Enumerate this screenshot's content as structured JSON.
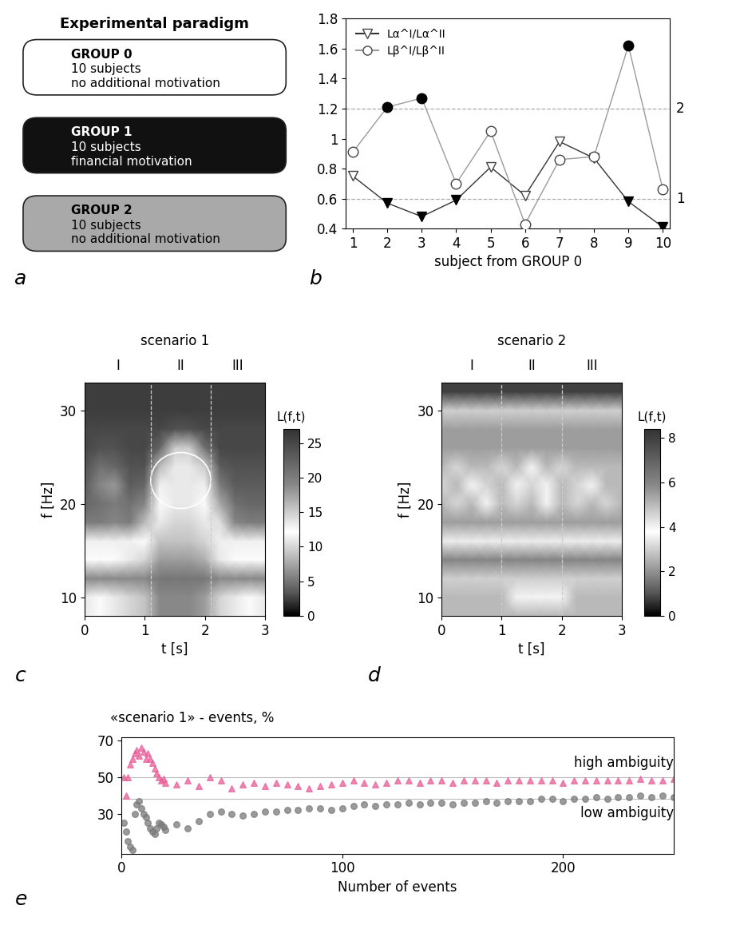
{
  "panel_a": {
    "panel": "a",
    "type": "diagram",
    "title": "Experimental paradigm",
    "groups": [
      {
        "name": "GROUP 0",
        "lines": [
          "10 subjects",
          "no additional motivation"
        ],
        "color": "#ffffff"
      },
      {
        "name": "GROUP 1",
        "lines": [
          "10 subjects",
          "financial motivation"
        ],
        "color": "#111111"
      },
      {
        "name": "GROUP 2",
        "lines": [
          "10 subjects",
          "no additional motivation"
        ],
        "color": "#a9a9a9"
      }
    ]
  },
  "chart_data": [
    {
      "panel": "b",
      "type": "line",
      "x_label": "subject from GROUP 0",
      "x": [
        1,
        2,
        3,
        4,
        5,
        6,
        7,
        8,
        9,
        10
      ],
      "xlim": [
        0.8,
        10.2
      ],
      "xticks": [
        1,
        2,
        3,
        4,
        5,
        6,
        7,
        8,
        9,
        10
      ],
      "ylim": [
        0.4,
        1.8
      ],
      "yticks": [
        0.4,
        0.6,
        0.8,
        1,
        1.2,
        1.4,
        1.6,
        1.8
      ],
      "legend": "upper left",
      "reference_lines": [
        {
          "value": 0.6,
          "label": "1"
        },
        {
          "value": 1.2,
          "label": "2"
        }
      ],
      "series": [
        {
          "name": "Lα^I/Lα^II",
          "color": "#333333",
          "marker": "triangle_down",
          "values": [
            0.75,
            0.57,
            0.48,
            0.59,
            0.81,
            0.62,
            0.98,
            0.87,
            0.58,
            0.41
          ],
          "filled": [
            false,
            true,
            true,
            true,
            false,
            false,
            false,
            false,
            true,
            true
          ]
        },
        {
          "name": "Lβ^I/Lβ^II",
          "color": "#9a9a9a",
          "marker": "circle",
          "values": [
            0.91,
            1.21,
            1.27,
            0.7,
            1.05,
            0.43,
            0.86,
            0.88,
            1.62,
            0.66
          ],
          "filled": [
            false,
            true,
            true,
            false,
            false,
            false,
            false,
            false,
            true,
            false
          ]
        }
      ]
    },
    {
      "panel": "c",
      "type": "heatmap",
      "title": "scenario 1",
      "x_label": "t [s]",
      "y_label": "f [Hz]",
      "colorbar_label": "L(f,t)",
      "xlim": [
        0,
        3
      ],
      "xticks": [
        0,
        1,
        2,
        3
      ],
      "ylim": [
        8,
        33
      ],
      "yticks": [
        10,
        20,
        30
      ],
      "clim": [
        0,
        27
      ],
      "cticks": [
        0,
        5,
        10,
        15,
        20,
        25
      ],
      "sections": {
        "labels": [
          "I",
          "II",
          "III"
        ],
        "boundaries": [
          1.1,
          2.1
        ]
      },
      "ellipse": {
        "center": [
          1.6,
          22.5
        ],
        "width": 1.0,
        "height": 6.0
      },
      "x": [
        0,
        0.25,
        0.5,
        0.75,
        1,
        1.25,
        1.5,
        1.75,
        2,
        2.25,
        2.5,
        2.75,
        3
      ],
      "y": [
        8,
        10,
        12,
        14,
        16,
        18,
        20,
        22,
        24,
        26,
        28,
        30,
        32,
        34
      ],
      "cells": [
        [
          11,
          12,
          11,
          10,
          9,
          6,
          6,
          6,
          7,
          10,
          11,
          12,
          11
        ],
        [
          11,
          12,
          11,
          10,
          9,
          6,
          6,
          6,
          7,
          10,
          11,
          12,
          11
        ],
        [
          6,
          6,
          6,
          6,
          6,
          5,
          5,
          5,
          5,
          6,
          6,
          6,
          6
        ],
        [
          12,
          12,
          12,
          11,
          10,
          7,
          7,
          7,
          8,
          11,
          12,
          12,
          12
        ],
        [
          13,
          13,
          13,
          13,
          12,
          9,
          9,
          9,
          10,
          13,
          13,
          13,
          13
        ],
        [
          20,
          20,
          19,
          20,
          16,
          11,
          10,
          10,
          11,
          14,
          19,
          20,
          20
        ],
        [
          22,
          21,
          20,
          21,
          19,
          12,
          11,
          11,
          12,
          17,
          21,
          22,
          22
        ],
        [
          23,
          19,
          18,
          23,
          22,
          13,
          11,
          11,
          13,
          20,
          23,
          23,
          23
        ],
        [
          24,
          21,
          22,
          24,
          24,
          16,
          11,
          11,
          15,
          23,
          24,
          24,
          24
        ],
        [
          25,
          24,
          24,
          25,
          25,
          22,
          15,
          15,
          21,
          25,
          25,
          25,
          25
        ],
        [
          25,
          25,
          25,
          25,
          25,
          25,
          24,
          24,
          25,
          25,
          25,
          25,
          25
        ],
        [
          26,
          26,
          26,
          26,
          26,
          26,
          26,
          26,
          26,
          26,
          26,
          26,
          26
        ],
        [
          26,
          26,
          26,
          26,
          26,
          26,
          26,
          26,
          26,
          26,
          26,
          26,
          26
        ],
        [
          26,
          26,
          26,
          26,
          26,
          26,
          26,
          26,
          26,
          26,
          26,
          26,
          26
        ]
      ]
    },
    {
      "panel": "d",
      "type": "heatmap",
      "title": "scenario 2",
      "x_label": "t [s]",
      "y_label": "f [Hz]",
      "colorbar_label": "L(f,t)",
      "xlim": [
        0,
        3
      ],
      "xticks": [
        0,
        1,
        2,
        3
      ],
      "ylim": [
        8,
        33
      ],
      "yticks": [
        10,
        20,
        30
      ],
      "clim": [
        0,
        8.4
      ],
      "cticks": [
        0,
        2,
        4,
        6,
        8
      ],
      "sections": {
        "labels": [
          "I",
          "II",
          "III"
        ],
        "boundaries": [
          1,
          2
        ]
      },
      "x": [
        0,
        0.25,
        0.5,
        0.75,
        1,
        1.25,
        1.5,
        1.75,
        2,
        2.25,
        2.5,
        2.75,
        3
      ],
      "y": [
        8,
        10,
        12,
        14,
        16,
        18,
        20,
        22,
        24,
        26,
        28,
        30,
        32,
        34
      ],
      "cells": [
        [
          5,
          5,
          5,
          5,
          5,
          5,
          5,
          5,
          5,
          5,
          5,
          5,
          5
        ],
        [
          5,
          5,
          5,
          5,
          5,
          4,
          4,
          4,
          4,
          5,
          5,
          5,
          5
        ],
        [
          3,
          3,
          3,
          3,
          3,
          3,
          3,
          3,
          3,
          3,
          3,
          3,
          3
        ],
        [
          6,
          6,
          6,
          6,
          6,
          6,
          6,
          6,
          6,
          6,
          6,
          6,
          6
        ],
        [
          3.5,
          3.5,
          3.5,
          3.5,
          3.5,
          3.5,
          3.5,
          3.5,
          3.5,
          3.5,
          3.5,
          3.5,
          3.5
        ],
        [
          5.5,
          5.5,
          5.5,
          5.5,
          5.5,
          5.5,
          5.5,
          5.5,
          5.5,
          5.5,
          5.5,
          5.5,
          5.5
        ],
        [
          5,
          4.5,
          5,
          4,
          5,
          4.5,
          5,
          4,
          5,
          4.5,
          5,
          4.5,
          5
        ],
        [
          4.5,
          5,
          4,
          4.5,
          5,
          4,
          4.5,
          4,
          5,
          4.5,
          4,
          5,
          5
        ],
        [
          5,
          4.5,
          5,
          5,
          4.5,
          5,
          4,
          5,
          4.5,
          5,
          5,
          5,
          5
        ],
        [
          5.5,
          5.5,
          5.5,
          5.5,
          5.5,
          5.5,
          5.5,
          5.5,
          5.5,
          5.5,
          5.5,
          5.5,
          5.5
        ],
        [
          5.5,
          5.5,
          5.5,
          5.5,
          5.5,
          5.5,
          5.5,
          5.5,
          5.5,
          5.5,
          5.5,
          5.5,
          5.5
        ],
        [
          3,
          3,
          3,
          3,
          3,
          3,
          3,
          3,
          3,
          3,
          3,
          3,
          3
        ],
        [
          8,
          8,
          8,
          8,
          8,
          8,
          8,
          8,
          8,
          8,
          8,
          8,
          8
        ],
        [
          8,
          8,
          8,
          8,
          8,
          8,
          8,
          8,
          8,
          8,
          8,
          8,
          8
        ]
      ]
    },
    {
      "panel": "e",
      "type": "scatter",
      "y_label": "«scenario 1» - events, %",
      "x_label": "Number of events",
      "xlim": [
        0,
        250
      ],
      "xticks": [
        0,
        100,
        200
      ],
      "ylim": [
        8,
        72
      ],
      "yticks": [
        30,
        50,
        70
      ],
      "reference_lines": [
        {
          "value": 50
        },
        {
          "value": 38
        }
      ],
      "x": [
        1,
        2,
        3,
        4,
        5,
        6,
        7,
        8,
        9,
        10,
        11,
        12,
        13,
        14,
        15,
        16,
        17,
        18,
        19,
        20,
        25,
        30,
        35,
        40,
        45,
        50,
        55,
        60,
        65,
        70,
        75,
        80,
        85,
        90,
        95,
        100,
        105,
        110,
        115,
        120,
        125,
        130,
        135,
        140,
        145,
        150,
        155,
        160,
        165,
        170,
        175,
        180,
        185,
        190,
        195,
        200,
        205,
        210,
        215,
        220,
        225,
        230,
        235,
        240,
        245,
        250
      ],
      "series": [
        {
          "name": "high ambiguity",
          "color": "#e8609a",
          "marker": "triangle_up",
          "values": [
            50,
            40,
            50,
            57,
            60,
            63,
            65,
            62,
            66,
            64,
            60,
            63,
            60,
            58,
            55,
            52,
            50,
            48,
            49,
            47,
            46,
            48,
            45,
            50,
            48,
            44,
            46,
            47,
            45,
            47,
            46,
            45,
            44,
            45,
            46,
            47,
            48,
            47,
            46,
            47,
            48,
            48,
            47,
            48,
            48,
            47,
            48,
            48,
            48,
            47,
            48,
            48,
            48,
            48,
            48,
            47,
            48,
            48,
            48,
            48,
            48,
            48,
            49,
            48,
            48,
            49
          ]
        },
        {
          "name": "low ambiguity",
          "color": "#7a7a7a",
          "marker": "circle",
          "values": [
            25,
            20,
            15,
            12,
            10,
            30,
            35,
            37,
            33,
            30,
            28,
            25,
            22,
            20,
            19,
            22,
            25,
            24,
            23,
            21,
            24,
            22,
            26,
            30,
            31,
            30,
            29,
            30,
            31,
            31,
            32,
            32,
            33,
            33,
            32,
            33,
            34,
            35,
            34,
            35,
            35,
            36,
            35,
            36,
            36,
            35,
            36,
            36,
            37,
            36,
            37,
            37,
            37,
            38,
            38,
            37,
            38,
            38,
            39,
            38,
            39,
            39,
            40,
            39,
            40,
            39
          ]
        }
      ]
    }
  ]
}
